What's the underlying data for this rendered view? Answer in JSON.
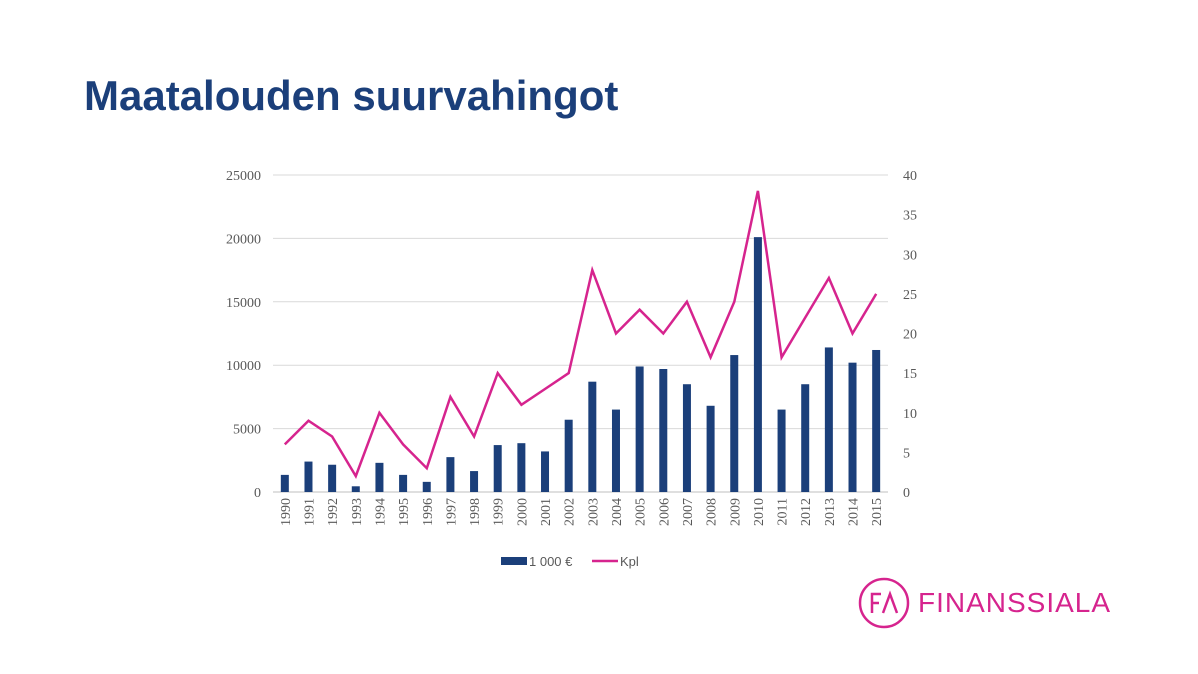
{
  "page": {
    "title": "Maatalouden suurvahingot"
  },
  "logo": {
    "text": "FINANSSIALA",
    "monogram": "FA",
    "color": "#d6248e"
  },
  "chart_data": {
    "type": "bar+line",
    "title": "",
    "categories": [
      "1990",
      "1991",
      "1992",
      "1993",
      "1994",
      "1995",
      "1996",
      "1997",
      "1998",
      "1999",
      "2000",
      "2001",
      "2002",
      "2003",
      "2004",
      "2005",
      "2006",
      "2007",
      "2008",
      "2009",
      "2010",
      "2011",
      "2012",
      "2013",
      "2014",
      "2015"
    ],
    "series": [
      {
        "name": "1 000 €",
        "type": "bar",
        "axis": "left",
        "color": "#1b3f7a",
        "values": [
          1350,
          2400,
          2150,
          450,
          2300,
          1350,
          800,
          2750,
          1650,
          3700,
          3850,
          3200,
          5700,
          8700,
          6500,
          9900,
          9700,
          8500,
          6800,
          10800,
          20100,
          6500,
          8500,
          11400,
          10200,
          11200
        ]
      },
      {
        "name": "Kpl",
        "type": "line",
        "axis": "right",
        "color": "#d6248e",
        "values": [
          6,
          9,
          7,
          2,
          10,
          6,
          3,
          12,
          7,
          15,
          11,
          13,
          15,
          28,
          20,
          23,
          20,
          24,
          17,
          24,
          38,
          17,
          22,
          27,
          20,
          25
        ]
      }
    ],
    "y_left": {
      "min": 0,
      "max": 25000,
      "ticks": [
        "0",
        "5000",
        "10000",
        "15000",
        "20000",
        "25000"
      ]
    },
    "y_right": {
      "min": 0,
      "max": 40,
      "ticks": [
        "0",
        "5",
        "10",
        "15",
        "20",
        "25",
        "30",
        "35",
        "40"
      ]
    },
    "grid": true,
    "legend": "bottom"
  }
}
